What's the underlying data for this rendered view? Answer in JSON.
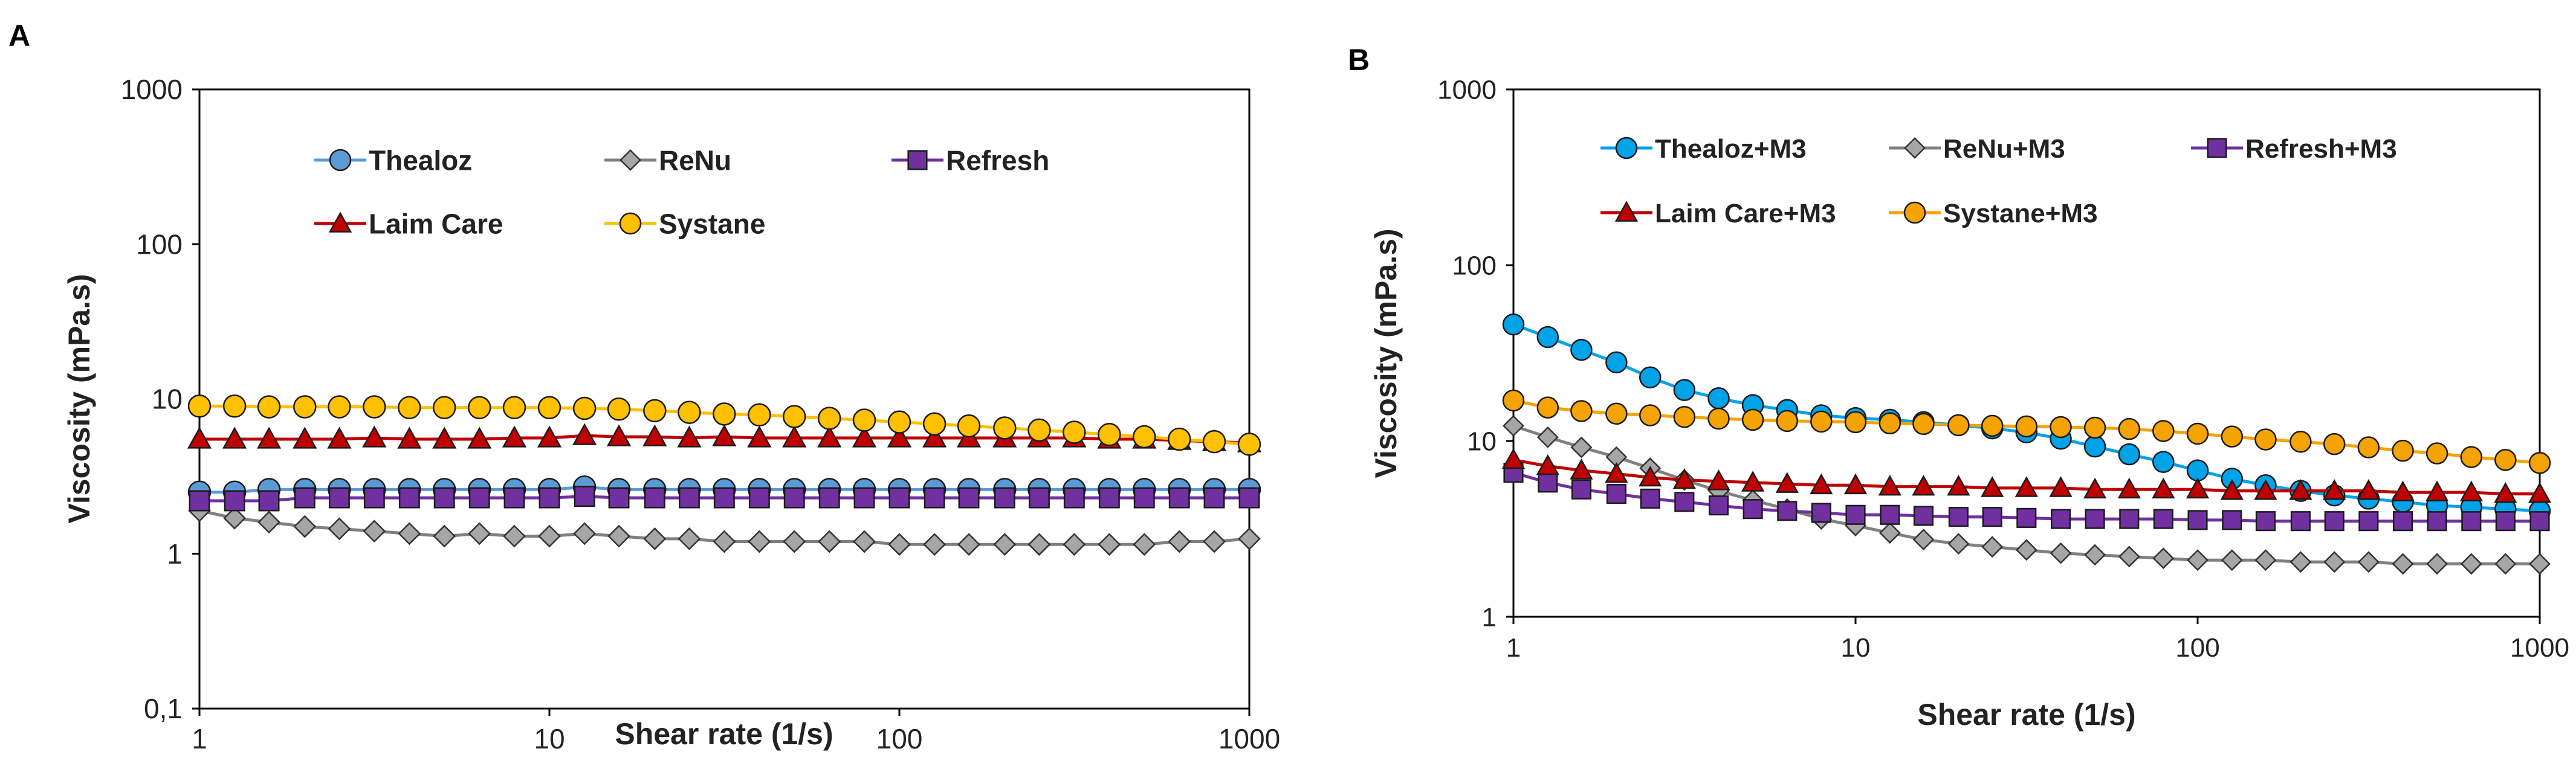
{
  "chart_data": [
    {
      "panel": "A",
      "type": "line",
      "xscale": "log",
      "yscale": "log",
      "xlabel": "Shear rate (1/s)",
      "ylabel": "Viscosity (mPa.s)",
      "xlim": [
        1,
        1000
      ],
      "ylim": [
        0.1,
        1000
      ],
      "x_tick_labels": [
        "1",
        "10",
        "100",
        "1000"
      ],
      "y_tick_labels": [
        "0,1",
        "1",
        "10",
        "100",
        "1000"
      ],
      "x_ticks": [
        1,
        10,
        100,
        1000
      ],
      "y_ticks": [
        0.1,
        1,
        10,
        100,
        1000
      ],
      "legend": "top",
      "x": [
        1,
        1.26,
        1.58,
        2,
        2.51,
        3.16,
        3.98,
        5.01,
        6.31,
        7.94,
        10,
        12.6,
        15.8,
        20,
        25.1,
        31.6,
        39.8,
        50.1,
        63.1,
        79.4,
        100,
        126,
        158,
        200,
        251,
        316,
        398,
        501,
        631,
        794,
        1000
      ],
      "series": [
        {
          "name": "Thealoz",
          "color": "#5b9bd5",
          "marker": "circle",
          "values": [
            2.5,
            2.5,
            2.6,
            2.6,
            2.6,
            2.6,
            2.6,
            2.6,
            2.6,
            2.6,
            2.6,
            2.7,
            2.6,
            2.6,
            2.6,
            2.6,
            2.6,
            2.6,
            2.6,
            2.6,
            2.6,
            2.6,
            2.6,
            2.6,
            2.6,
            2.6,
            2.6,
            2.6,
            2.6,
            2.6,
            2.6
          ]
        },
        {
          "name": "ReNu",
          "color": "#808080",
          "marker": "diamond",
          "values": [
            1.9,
            1.7,
            1.6,
            1.5,
            1.45,
            1.4,
            1.35,
            1.3,
            1.35,
            1.3,
            1.3,
            1.35,
            1.3,
            1.25,
            1.25,
            1.2,
            1.2,
            1.2,
            1.2,
            1.2,
            1.15,
            1.15,
            1.15,
            1.15,
            1.15,
            1.15,
            1.15,
            1.15,
            1.2,
            1.2,
            1.25
          ]
        },
        {
          "name": "Refresh",
          "color": "#7030a0",
          "marker": "square",
          "values": [
            2.2,
            2.2,
            2.2,
            2.3,
            2.3,
            2.3,
            2.3,
            2.3,
            2.3,
            2.3,
            2.3,
            2.35,
            2.3,
            2.3,
            2.3,
            2.3,
            2.3,
            2.3,
            2.3,
            2.3,
            2.3,
            2.3,
            2.3,
            2.3,
            2.3,
            2.3,
            2.3,
            2.3,
            2.3,
            2.3,
            2.3
          ]
        },
        {
          "name": "Laim Care",
          "color": "#c00000",
          "marker": "triangle",
          "values": [
            5.5,
            5.5,
            5.5,
            5.5,
            5.5,
            5.6,
            5.5,
            5.5,
            5.5,
            5.6,
            5.6,
            5.8,
            5.7,
            5.7,
            5.6,
            5.7,
            5.6,
            5.6,
            5.6,
            5.6,
            5.6,
            5.6,
            5.6,
            5.6,
            5.6,
            5.6,
            5.5,
            5.5,
            5.4,
            5.3,
            5.2
          ]
        },
        {
          "name": "Systane",
          "color": "#ffc000",
          "marker": "circle",
          "values": [
            9.0,
            9.0,
            8.9,
            8.9,
            8.9,
            8.9,
            8.8,
            8.8,
            8.8,
            8.8,
            8.8,
            8.7,
            8.6,
            8.4,
            8.2,
            8.0,
            7.9,
            7.7,
            7.5,
            7.3,
            7.1,
            6.9,
            6.7,
            6.5,
            6.3,
            6.1,
            5.9,
            5.7,
            5.5,
            5.3,
            5.1
          ]
        }
      ]
    },
    {
      "panel": "B",
      "type": "line",
      "xscale": "log",
      "yscale": "log",
      "xlabel": "Shear rate (1/s)",
      "ylabel": "Viscosity  (mPa.s)",
      "xlim": [
        1,
        1000
      ],
      "ylim": [
        1,
        1000
      ],
      "x_tick_labels": [
        "1",
        "10",
        "100",
        "1000"
      ],
      "y_tick_labels": [
        "1",
        "10",
        "100",
        "1000"
      ],
      "x_ticks": [
        1,
        10,
        100,
        1000
      ],
      "y_ticks": [
        1,
        10,
        100,
        1000
      ],
      "legend": "top",
      "x": [
        1,
        1.26,
        1.58,
        2,
        2.51,
        3.16,
        3.98,
        5.01,
        6.31,
        7.94,
        10,
        12.6,
        15.8,
        20,
        25.1,
        31.6,
        39.8,
        50.1,
        63.1,
        79.4,
        100,
        126,
        158,
        200,
        251,
        316,
        398,
        501,
        631,
        794,
        1000
      ],
      "series": [
        {
          "name": "Thealoz+M3",
          "color": "#00a2e8",
          "marker": "circle",
          "values": [
            46,
            39,
            33,
            28,
            23,
            19.5,
            17.5,
            16,
            15,
            14,
            13.5,
            13.2,
            12.8,
            12.3,
            11.8,
            11.2,
            10.3,
            9.3,
            8.4,
            7.6,
            6.8,
            6.1,
            5.6,
            5.2,
            4.9,
            4.7,
            4.5,
            4.3,
            4.2,
            4.1,
            4.0
          ]
        },
        {
          "name": "ReNu+M3",
          "color": "#808080",
          "marker": "diamond",
          "values": [
            12.2,
            10.5,
            9.2,
            8.1,
            7.0,
            6.0,
            5.2,
            4.6,
            4.1,
            3.6,
            3.3,
            3.0,
            2.75,
            2.6,
            2.5,
            2.4,
            2.3,
            2.25,
            2.2,
            2.15,
            2.1,
            2.1,
            2.1,
            2.05,
            2.05,
            2.05,
            2.0,
            2.0,
            2.0,
            2.0,
            2.0
          ]
        },
        {
          "name": "Refresh+M3",
          "color": "#7030a0",
          "marker": "square",
          "values": [
            6.6,
            5.8,
            5.3,
            5.0,
            4.7,
            4.5,
            4.3,
            4.1,
            4.0,
            3.9,
            3.8,
            3.8,
            3.75,
            3.7,
            3.7,
            3.65,
            3.6,
            3.6,
            3.6,
            3.6,
            3.55,
            3.55,
            3.5,
            3.5,
            3.5,
            3.5,
            3.5,
            3.5,
            3.5,
            3.5,
            3.5
          ]
        },
        {
          "name": "Laim Care+M3",
          "color": "#c00000",
          "marker": "triangle",
          "values": [
            7.8,
            7.2,
            6.8,
            6.5,
            6.2,
            6.0,
            5.9,
            5.8,
            5.7,
            5.6,
            5.6,
            5.5,
            5.5,
            5.5,
            5.4,
            5.4,
            5.4,
            5.3,
            5.3,
            5.3,
            5.3,
            5.2,
            5.2,
            5.2,
            5.2,
            5.2,
            5.1,
            5.1,
            5.1,
            5.0,
            5.0
          ]
        },
        {
          "name": "Systane+M3",
          "color": "#f4a300",
          "marker": "circle",
          "values": [
            17,
            15.5,
            14.8,
            14.3,
            14.0,
            13.7,
            13.4,
            13.2,
            13.0,
            12.9,
            12.8,
            12.6,
            12.5,
            12.3,
            12.2,
            12.1,
            12.0,
            11.9,
            11.7,
            11.4,
            11.0,
            10.6,
            10.2,
            9.9,
            9.6,
            9.2,
            8.8,
            8.5,
            8.1,
            7.8,
            7.5
          ]
        }
      ]
    }
  ]
}
